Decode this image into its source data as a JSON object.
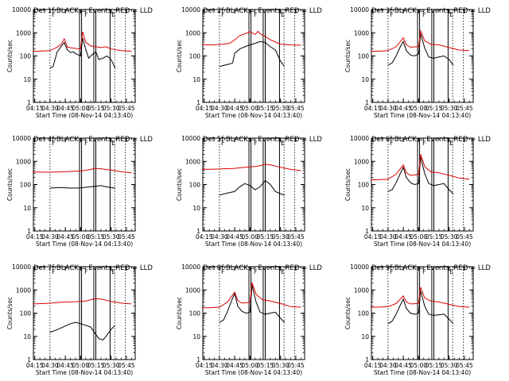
{
  "figure": {
    "colors": {
      "events": "#000000",
      "lld": "#dd0000",
      "axes": "#000000",
      "background": "#ffffff"
    }
  },
  "chart_data": [
    {
      "type": "line",
      "detector": "1",
      "title": "Det 1f BLACK = Events, RED = LLD",
      "xlabel": "Start Time (08-Nov-14 04:13:40)",
      "ylabel": "Counts/sec",
      "xlim": [
        "04:13:40",
        "05:53:40"
      ],
      "ylim": [
        1,
        10000
      ],
      "yscale": "log",
      "xticks": [
        "04:15",
        "04:30",
        "04:45",
        "05:00",
        "05:15",
        "05:30",
        "05:45"
      ],
      "yticks": [
        "1",
        "10",
        "100",
        "1000",
        "10000"
      ],
      "markers": [
        "F",
        "F",
        "E"
      ],
      "series": [
        {
          "name": "Events",
          "color": "#000000",
          "x": [
            "04:30",
            "04:33",
            "04:37",
            "04:41",
            "04:44",
            "04:47",
            "04:50",
            "04:53",
            "04:56",
            "05:00",
            "05:02",
            "05:05",
            "05:08",
            "05:11",
            "05:15",
            "05:18",
            "05:22",
            "05:26",
            "05:30",
            "05:34"
          ],
          "y": [
            30,
            35,
            150,
            260,
            380,
            180,
            140,
            150,
            120,
            100,
            600,
            200,
            80,
            110,
            150,
            70,
            80,
            100,
            70,
            30
          ]
        },
        {
          "name": "LLD",
          "color": "#dd0000",
          "x": [
            "04:13",
            "04:20",
            "04:30",
            "04:37",
            "04:41",
            "04:44",
            "04:47",
            "04:52",
            "04:56",
            "05:00",
            "05:02",
            "05:05",
            "05:10",
            "05:15",
            "05:20",
            "05:25",
            "05:30",
            "05:40",
            "05:50"
          ],
          "y": [
            160,
            160,
            170,
            240,
            320,
            550,
            240,
            220,
            210,
            200,
            1100,
            400,
            270,
            250,
            230,
            250,
            200,
            170,
            160
          ]
        }
      ]
    },
    {
      "type": "line",
      "detector": "2",
      "title": "Det 2f BLACK = Events, RED = LLD",
      "xlabel": "Start Time (08-Nov-14 04:13:40)",
      "ylabel": "Counts/sec",
      "xlim": [
        "04:13:40",
        "05:53:40"
      ],
      "ylim": [
        1,
        10000
      ],
      "yscale": "log",
      "xticks": [
        "04:15",
        "04:30",
        "04:45",
        "05:00",
        "05:15",
        "05:30",
        "05:45"
      ],
      "yticks": [
        "1",
        "10",
        "100",
        "1000",
        "10000"
      ],
      "markers": [
        "F",
        "F",
        "E"
      ],
      "series": [
        {
          "name": "Events",
          "color": "#000000",
          "x": [
            "04:30",
            "04:35",
            "04:40",
            "04:43",
            "04:45",
            "04:50",
            "04:55",
            "05:00",
            "05:05",
            "05:10",
            "05:15",
            "05:20",
            "05:25",
            "05:30",
            "05:34"
          ],
          "y": [
            35,
            40,
            45,
            50,
            130,
            200,
            250,
            300,
            350,
            420,
            380,
            250,
            180,
            60,
            35
          ]
        },
        {
          "name": "LLD",
          "color": "#dd0000",
          "x": [
            "04:13",
            "04:20",
            "04:30",
            "04:40",
            "04:45",
            "04:50",
            "04:55",
            "05:00",
            "05:05",
            "05:08",
            "05:10",
            "05:15",
            "05:20",
            "05:30",
            "05:40",
            "05:50"
          ],
          "y": [
            300,
            300,
            310,
            350,
            500,
            750,
            900,
            1100,
            850,
            1150,
            900,
            700,
            500,
            320,
            300,
            290
          ]
        }
      ]
    },
    {
      "type": "line",
      "detector": "3",
      "title": "Det 3f BLACK = Events, RED = LLD",
      "xlabel": "Start Time (08-Nov-14 04:13:40)",
      "ylabel": "Counts/sec",
      "xlim": [
        "04:13:40",
        "05:53:40"
      ],
      "ylim": [
        1,
        10000
      ],
      "yscale": "log",
      "xticks": [
        "04:15",
        "04:30",
        "04:45",
        "05:00",
        "05:15",
        "05:30",
        "05:45"
      ],
      "yticks": [
        "1",
        "10",
        "100",
        "1000",
        "10000"
      ],
      "markers": [
        "F",
        "F",
        "E"
      ],
      "series": [
        {
          "name": "Events",
          "color": "#000000",
          "x": [
            "04:30",
            "04:34",
            "04:38",
            "04:42",
            "04:45",
            "04:48",
            "04:52",
            "04:56",
            "05:00",
            "05:02",
            "05:06",
            "05:10",
            "05:15",
            "05:20",
            "05:25",
            "05:30",
            "05:34"
          ],
          "y": [
            40,
            50,
            100,
            250,
            420,
            170,
            110,
            100,
            120,
            900,
            220,
            90,
            80,
            90,
            100,
            70,
            40
          ]
        },
        {
          "name": "LLD",
          "color": "#dd0000",
          "x": [
            "04:13",
            "04:20",
            "04:30",
            "04:38",
            "04:45",
            "04:48",
            "04:52",
            "05:00",
            "05:02",
            "05:06",
            "05:12",
            "05:20",
            "05:30",
            "05:40",
            "05:50"
          ],
          "y": [
            160,
            160,
            170,
            250,
            600,
            300,
            240,
            250,
            1200,
            450,
            320,
            300,
            230,
            180,
            170
          ]
        }
      ]
    },
    {
      "type": "line",
      "detector": "4",
      "title": "Det 4f BLACK = Events, RED = LLD",
      "xlabel": "Start Time (08-Nov-14 04:13:40)",
      "ylabel": "Counts/sec",
      "xlim": [
        "04:13:40",
        "05:53:40"
      ],
      "ylim": [
        1,
        10000
      ],
      "yscale": "log",
      "xticks": [
        "04:15",
        "04:30",
        "04:45",
        "05:00",
        "05:15",
        "05:30",
        "05:45"
      ],
      "yticks": [
        "1",
        "10",
        "100",
        "1000",
        "10000"
      ],
      "markers": [
        "F",
        "F",
        "E"
      ],
      "series": [
        {
          "name": "Events",
          "color": "#000000",
          "x": [
            "04:30",
            "04:40",
            "04:50",
            "05:00",
            "05:10",
            "05:15",
            "05:20",
            "05:25",
            "05:30",
            "05:34"
          ],
          "y": [
            70,
            75,
            70,
            72,
            80,
            85,
            90,
            80,
            75,
            70
          ]
        },
        {
          "name": "LLD",
          "color": "#dd0000",
          "x": [
            "04:13",
            "04:30",
            "04:45",
            "05:00",
            "05:10",
            "05:15",
            "05:20",
            "05:30",
            "05:40",
            "05:50"
          ],
          "y": [
            350,
            340,
            360,
            380,
            450,
            500,
            480,
            420,
            360,
            320
          ]
        }
      ]
    },
    {
      "type": "line",
      "detector": "5",
      "title": "Det 5f BLACK = Events, RED = LLD",
      "xlabel": "Start Time (08-Nov-14 04:13:40)",
      "ylabel": "Counts/sec",
      "xlim": [
        "04:13:40",
        "05:53:40"
      ],
      "ylim": [
        1,
        10000
      ],
      "yscale": "log",
      "xticks": [
        "04:15",
        "04:30",
        "04:45",
        "05:00",
        "05:15",
        "05:30",
        "05:45"
      ],
      "yticks": [
        "1",
        "10",
        "100",
        "1000",
        "10000"
      ],
      "markers": [
        "F",
        "F",
        "E"
      ],
      "series": [
        {
          "name": "Events",
          "color": "#000000",
          "x": [
            "04:30",
            "04:35",
            "04:40",
            "04:45",
            "04:50",
            "04:55",
            "05:00",
            "05:05",
            "05:10",
            "05:15",
            "05:20",
            "05:25",
            "05:30",
            "05:34"
          ],
          "y": [
            35,
            40,
            45,
            50,
            80,
            110,
            90,
            60,
            80,
            150,
            100,
            50,
            40,
            35
          ]
        },
        {
          "name": "LLD",
          "color": "#dd0000",
          "x": [
            "04:13",
            "04:25",
            "04:35",
            "04:45",
            "04:55",
            "05:05",
            "05:10",
            "05:15",
            "05:20",
            "05:30",
            "05:40",
            "05:50"
          ],
          "y": [
            450,
            460,
            480,
            500,
            550,
            600,
            650,
            750,
            700,
            550,
            450,
            400
          ]
        }
      ]
    },
    {
      "type": "line",
      "detector": "6",
      "title": "Det 6f BLACK = Events, RED = LLD",
      "xlabel": "Start Time (08-Nov-14 04:13:40)",
      "ylabel": "Counts/sec",
      "xlim": [
        "04:13:40",
        "05:53:40"
      ],
      "ylim": [
        1,
        10000
      ],
      "yscale": "log",
      "xticks": [
        "04:15",
        "04:30",
        "04:45",
        "05:00",
        "05:15",
        "05:30",
        "05:45"
      ],
      "yticks": [
        "1",
        "10",
        "100",
        "1000",
        "10000"
      ],
      "markers": [
        "F",
        "F",
        "E"
      ],
      "series": [
        {
          "name": "Events",
          "color": "#000000",
          "x": [
            "04:30",
            "04:34",
            "04:38",
            "04:42",
            "04:45",
            "04:48",
            "04:52",
            "04:56",
            "05:00",
            "05:02",
            "05:06",
            "05:10",
            "05:15",
            "05:20",
            "05:25",
            "05:30",
            "05:34"
          ],
          "y": [
            50,
            60,
            120,
            300,
            550,
            200,
            120,
            100,
            110,
            1500,
            300,
            110,
            90,
            100,
            110,
            60,
            40
          ]
        },
        {
          "name": "LLD",
          "color": "#dd0000",
          "x": [
            "04:13",
            "04:20",
            "04:30",
            "04:38",
            "04:45",
            "04:48",
            "04:52",
            "05:00",
            "05:02",
            "05:06",
            "05:12",
            "05:20",
            "05:30",
            "05:40",
            "05:50"
          ],
          "y": [
            160,
            160,
            170,
            280,
            700,
            320,
            250,
            270,
            2000,
            600,
            350,
            320,
            250,
            190,
            170
          ]
        }
      ]
    },
    {
      "type": "line",
      "detector": "7",
      "title": "Det 7f BLACK = Events, RED = LLD",
      "xlabel": "Start Time (08-Nov-14 04:13:40)",
      "ylabel": "Counts/sec",
      "xlim": [
        "04:13:40",
        "05:53:40"
      ],
      "ylim": [
        1,
        10000
      ],
      "yscale": "log",
      "xticks": [
        "04:15",
        "04:30",
        "04:45",
        "05:00",
        "05:15",
        "05:30",
        "05:45"
      ],
      "yticks": [
        "1",
        "10",
        "100",
        "1000",
        "10000"
      ],
      "markers": [
        "F",
        "F",
        "E"
      ],
      "series": [
        {
          "name": "Events",
          "color": "#000000",
          "x": [
            "04:30",
            "04:35",
            "04:40",
            "04:45",
            "04:50",
            "04:55",
            "05:00",
            "05:05",
            "05:10",
            "05:15",
            "05:18",
            "05:22",
            "05:25",
            "05:30",
            "05:34"
          ],
          "y": [
            15,
            18,
            22,
            28,
            35,
            40,
            35,
            30,
            25,
            12,
            8,
            7,
            10,
            20,
            30
          ]
        },
        {
          "name": "LLD",
          "color": "#dd0000",
          "x": [
            "04:13",
            "04:25",
            "04:35",
            "04:45",
            "04:55",
            "05:05",
            "05:10",
            "05:15",
            "05:20",
            "05:30",
            "05:40",
            "05:50"
          ],
          "y": [
            250,
            260,
            280,
            300,
            310,
            330,
            380,
            420,
            400,
            320,
            270,
            250
          ]
        }
      ]
    },
    {
      "type": "line",
      "detector": "8",
      "title": "Det 8f BLACK = Events, RED = LLD",
      "xlabel": "Start Time (08-Nov-14 04:13:40)",
      "ylabel": "Counts/sec",
      "xlim": [
        "04:13:40",
        "05:53:40"
      ],
      "ylim": [
        1,
        10000
      ],
      "yscale": "log",
      "xticks": [
        "04:15",
        "04:30",
        "04:45",
        "05:00",
        "05:15",
        "05:30",
        "05:45"
      ],
      "yticks": [
        "1",
        "10",
        "100",
        "1000",
        "10000"
      ],
      "markers": [
        "F",
        "F",
        "E"
      ],
      "series": [
        {
          "name": "Events",
          "color": "#000000",
          "x": [
            "04:30",
            "04:34",
            "04:38",
            "04:42",
            "04:45",
            "04:48",
            "04:52",
            "04:56",
            "05:00",
            "05:02",
            "05:06",
            "05:10",
            "05:15",
            "05:20",
            "05:25",
            "05:30",
            "05:34"
          ],
          "y": [
            40,
            50,
            120,
            350,
            700,
            200,
            120,
            100,
            110,
            1600,
            300,
            110,
            90,
            100,
            110,
            60,
            40
          ]
        },
        {
          "name": "LLD",
          "color": "#dd0000",
          "x": [
            "04:13",
            "04:20",
            "04:30",
            "04:38",
            "04:45",
            "04:48",
            "04:52",
            "05:00",
            "05:02",
            "05:06",
            "05:12",
            "05:20",
            "05:30",
            "05:40",
            "05:50"
          ],
          "y": [
            170,
            170,
            180,
            300,
            800,
            350,
            270,
            290,
            2100,
            650,
            380,
            330,
            260,
            190,
            180
          ]
        }
      ]
    },
    {
      "type": "line",
      "detector": "9",
      "title": "Det 9f BLACK = Events, RED = LLD",
      "xlabel": "Start Time (08-Nov-14 04:13:40)",
      "ylabel": "Counts/sec",
      "xlim": [
        "04:13:40",
        "05:53:40"
      ],
      "ylim": [
        1,
        10000
      ],
      "yscale": "log",
      "xticks": [
        "04:15",
        "04:30",
        "04:45",
        "05:00",
        "05:15",
        "05:30",
        "05:45"
      ],
      "yticks": [
        "1",
        "10",
        "100",
        "1000",
        "10000"
      ],
      "markers": [
        "F",
        "F",
        "E"
      ],
      "series": [
        {
          "name": "Events",
          "color": "#000000",
          "x": [
            "04:30",
            "04:34",
            "04:38",
            "04:42",
            "04:45",
            "04:48",
            "04:52",
            "04:56",
            "05:00",
            "05:02",
            "05:06",
            "05:10",
            "05:15",
            "05:20",
            "05:25",
            "05:30",
            "05:34"
          ],
          "y": [
            35,
            45,
            90,
            220,
            400,
            160,
            100,
            90,
            100,
            900,
            200,
            90,
            80,
            85,
            90,
            55,
            35
          ]
        },
        {
          "name": "LLD",
          "color": "#dd0000",
          "x": [
            "04:13",
            "04:20",
            "04:30",
            "04:38",
            "04:45",
            "04:48",
            "04:52",
            "05:00",
            "05:02",
            "05:06",
            "05:12",
            "05:20",
            "05:30",
            "05:40",
            "05:50"
          ],
          "y": [
            180,
            180,
            190,
            260,
            550,
            300,
            250,
            260,
            1300,
            450,
            330,
            300,
            240,
            190,
            180
          ]
        }
      ]
    }
  ]
}
